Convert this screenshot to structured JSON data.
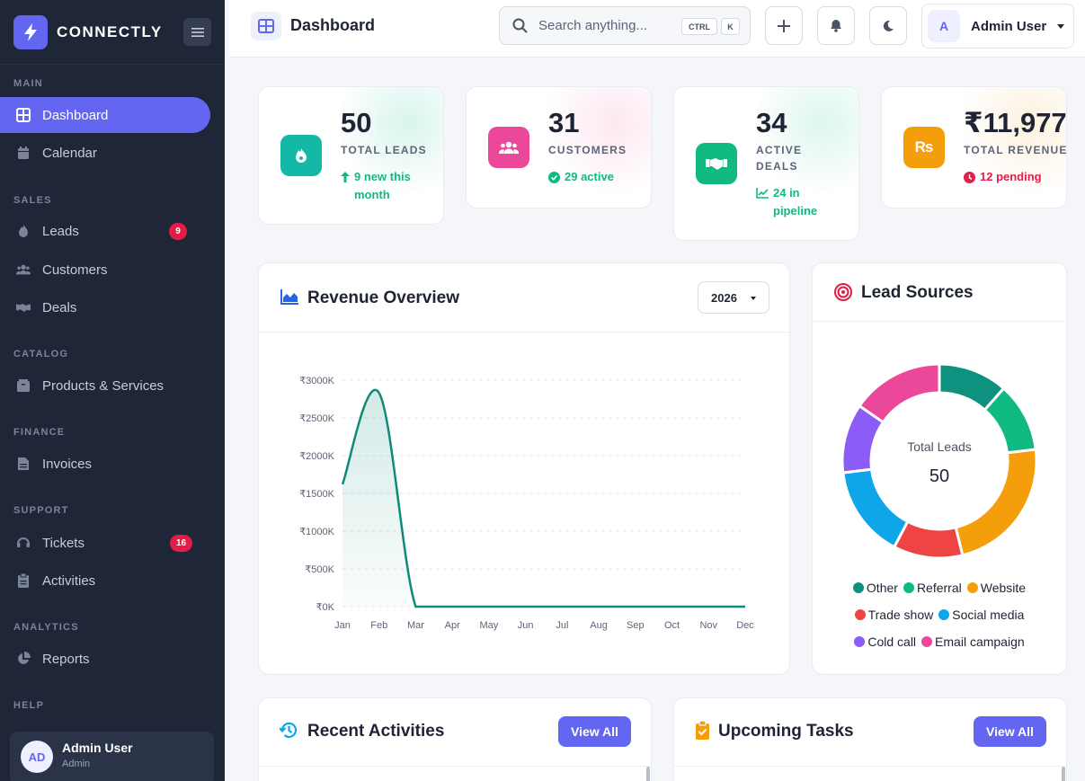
{
  "brand": {
    "name": "CONNECTLY",
    "accent": "#6366f1"
  },
  "sidebar": {
    "sections": [
      {
        "title": "MAIN",
        "items": [
          {
            "label": "Dashboard",
            "icon": "grid-icon",
            "active": true
          },
          {
            "label": "Calendar",
            "icon": "calendar-icon"
          }
        ]
      },
      {
        "title": "SALES",
        "items": [
          {
            "label": "Leads",
            "icon": "fire-icon",
            "badge": "9"
          },
          {
            "label": "Customers",
            "icon": "users-icon"
          },
          {
            "label": "Deals",
            "icon": "handshake-icon"
          }
        ]
      },
      {
        "title": "CATALOG",
        "items": [
          {
            "label": "Products & Services",
            "icon": "box-icon"
          }
        ]
      },
      {
        "title": "FINANCE",
        "items": [
          {
            "label": "Invoices",
            "icon": "invoice-icon"
          }
        ]
      },
      {
        "title": "SUPPORT",
        "items": [
          {
            "label": "Tickets",
            "icon": "headset-icon",
            "badge": "16"
          },
          {
            "label": "Activities",
            "icon": "clipboard-icon"
          }
        ]
      },
      {
        "title": "ANALYTICS",
        "items": [
          {
            "label": "Reports",
            "icon": "pie-chart-icon"
          }
        ]
      },
      {
        "title": "HELP",
        "items": []
      }
    ],
    "user": {
      "initials": "AD",
      "name": "Admin User",
      "role": "Admin"
    }
  },
  "header": {
    "title": "Dashboard",
    "search_placeholder": "Search anything...",
    "shortcut_keys": [
      "CTRL",
      "K"
    ],
    "user_initial": "A",
    "user_name": "Admin User"
  },
  "stats": [
    {
      "value": "50",
      "label": "TOTAL LEADS",
      "sub": "9 new this month",
      "icon": "fire-icon",
      "color": "#14b8a6",
      "sub_color": "#10b981"
    },
    {
      "value": "31",
      "label": "CUSTOMERS",
      "sub": "29 active",
      "icon": "users-icon",
      "color": "#ec4899",
      "sub_color": "#10b981"
    },
    {
      "value": "34",
      "label": "ACTIVE DEALS",
      "sub": "24 in pipeline",
      "icon": "handshake-icon",
      "color": "#10b981",
      "sub_color": "#10b981"
    },
    {
      "value": "₹11,977.4",
      "label": "TOTAL REVENUE",
      "sub": "12 pending",
      "icon": "rupee-icon",
      "color": "#f59e0b",
      "sub_color": "#e11d48"
    }
  ],
  "revenue": {
    "title": "Revenue Overview",
    "year": "2026",
    "chart_data": {
      "type": "area",
      "categories": [
        "Jan",
        "Feb",
        "Mar",
        "Apr",
        "May",
        "Jun",
        "Jul",
        "Aug",
        "Sep",
        "Oct",
        "Nov",
        "Dec"
      ],
      "values": [
        1620,
        2830,
        0,
        0,
        0,
        0,
        0,
        0,
        0,
        0,
        0,
        0
      ],
      "y_ticks": [
        "₹0K",
        "₹500K",
        "₹1000K",
        "₹1500K",
        "₹2000K",
        "₹2500K",
        "₹3000K"
      ],
      "ylim": [
        0,
        3000
      ],
      "grid": true,
      "color": "#0f8a7a"
    }
  },
  "lead_sources": {
    "title": "Lead Sources",
    "center_label": "Total Leads",
    "center_value": "50",
    "chart_data": {
      "type": "pie",
      "labels": [
        "Other",
        "Referral",
        "Website",
        "Trade show",
        "Social media",
        "Cold call",
        "Email campaign"
      ],
      "values": [
        6,
        6,
        12,
        6,
        8,
        6,
        8
      ],
      "colors": [
        "#0f9180",
        "#10b981",
        "#f59e0b",
        "#ef4444",
        "#0ea5e9",
        "#8b5cf6",
        "#ec4899"
      ]
    }
  },
  "activities": {
    "title": "Recent Activities",
    "view_all": "View All"
  },
  "tasks": {
    "title": "Upcoming Tasks",
    "view_all": "View All"
  }
}
